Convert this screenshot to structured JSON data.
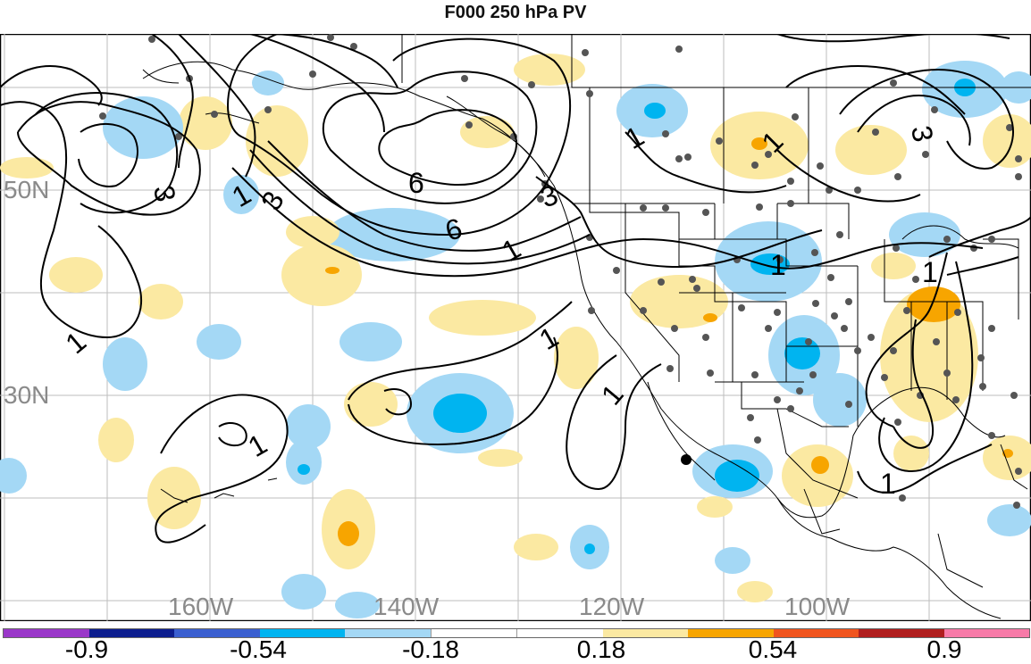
{
  "title": "F000 250 hPa PV",
  "lon_labels": [
    "160W",
    "140W",
    "120W",
    "100W"
  ],
  "lat_labels": [
    "50N",
    "30N"
  ],
  "contour_labels": [
    "1",
    "3",
    "6",
    "1",
    "3",
    "6",
    "3",
    "1",
    "1",
    "1",
    "1",
    "1",
    "1",
    "1",
    "3",
    "1"
  ],
  "colorbar": {
    "ticks": [
      "-0.9",
      "-0.54",
      "-0.18",
      "0.18",
      "0.54",
      "0.9"
    ],
    "colors": [
      "#9a37c9",
      "#0c1d8e",
      "#3a5fd0",
      "#00b4f0",
      "#a4d8f5",
      "#ffffff",
      "#ffffff",
      "#fbe9a2",
      "#f7a500",
      "#f0541e",
      "#b01e1e",
      "#f77aa8"
    ]
  },
  "colors": {
    "pos_weak": "#fbe9a2",
    "pos_mod": "#f7a500",
    "neg_weak": "#a4d8f5",
    "neg_mod": "#00b4f0"
  }
}
